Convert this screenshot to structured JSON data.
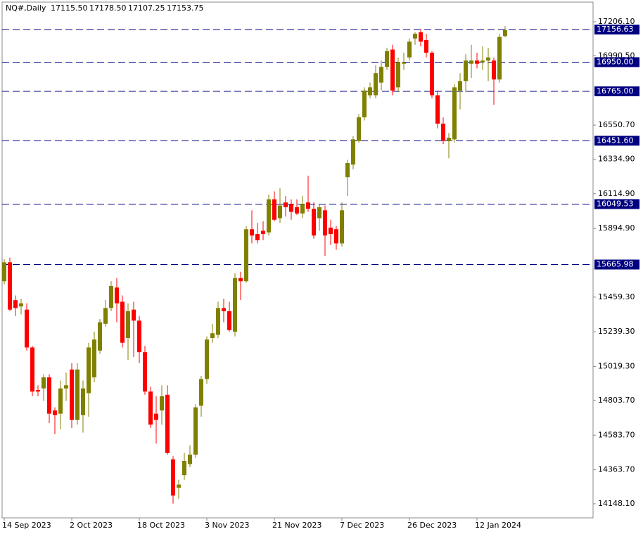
{
  "chart_data": {
    "type": "candlestick",
    "title": "NQ#,Daily",
    "last_bar_labels": [
      "17115.50",
      "17178.50",
      "17107.25",
      "17153.75"
    ],
    "up_color": "#808000",
    "down_color": "#ff0000",
    "level_color": "#000080",
    "categories": [
      "14 Sep 2023",
      null,
      null,
      null,
      null,
      null,
      null,
      null,
      null,
      null,
      null,
      null,
      "2 Oct 2023",
      null,
      null,
      null,
      null,
      null,
      null,
      null,
      null,
      null,
      null,
      null,
      "18 Oct 2023",
      null,
      null,
      null,
      null,
      null,
      null,
      null,
      null,
      null,
      null,
      null,
      "3 Nov 2023",
      null,
      null,
      null,
      null,
      null,
      null,
      null,
      null,
      null,
      null,
      null,
      "21 Nov 2023",
      null,
      null,
      null,
      null,
      null,
      null,
      null,
      null,
      null,
      null,
      null,
      "7 Dec 2023",
      null,
      null,
      null,
      null,
      null,
      null,
      null,
      null,
      null,
      null,
      null,
      "26 Dec 2023",
      null,
      null,
      null,
      null,
      null,
      null,
      null,
      null,
      null,
      null,
      null,
      "12 Jan 2024",
      null,
      null,
      null,
      null,
      null
    ],
    "open": [
      15560,
      15680,
      15440,
      15400,
      15380,
      15140,
      14870,
      14880,
      14950,
      14740,
      14720,
      14880,
      15000,
      14680,
      14710,
      14850,
      14950,
      15120,
      15290,
      15390,
      15520,
      15430,
      15200,
      15380,
      15310,
      15110,
      14860,
      14720,
      14740,
      14840,
      14430,
      14250,
      14330,
      14400,
      14460,
      14770,
      14940,
      15200,
      15220,
      15390,
      15370,
      15240,
      15580,
      15560,
      15890,
      15860,
      15880,
      15870,
      16080,
      15960,
      16060,
      16050,
      16030,
      15990,
      16060,
      16020,
      15960,
      16010,
      15900,
      15890,
      15800,
      16220,
      16300,
      16450,
      16600,
      16740,
      16740,
      16820,
      16920,
      17030,
      16790,
      16940,
      16980,
      17100,
      17140,
      17090,
      17010,
      16740,
      16560,
      16450,
      16460,
      16770,
      16830,
      16940,
      16960,
      16950,
      16960,
      16960,
      16840,
      17115.5
    ],
    "high": [
      15700,
      15710,
      15470,
      15450,
      15420,
      15150,
      14900,
      14970,
      14970,
      14760,
      14930,
      14980,
      15040,
      15040,
      14930,
      15170,
      15240,
      15320,
      15440,
      15560,
      15580,
      15470,
      15420,
      15430,
      15340,
      15150,
      14890,
      14830,
      14900,
      14900,
      14450,
      14300,
      14470,
      14520,
      14780,
      14960,
      15210,
      15290,
      15430,
      15450,
      15430,
      15610,
      15620,
      15910,
      16010,
      15930,
      15940,
      16110,
      16130,
      16150,
      16100,
      16080,
      16080,
      16100,
      16230,
      16060,
      16050,
      16040,
      15950,
      15910,
      16060,
      16330,
      16480,
      16620,
      16790,
      16820,
      16930,
      16960,
      17040,
      17060,
      16980,
      17010,
      17100,
      17140,
      17160,
      17130,
      17020,
      16770,
      16600,
      16500,
      16810,
      16880,
      17000,
      17060,
      17010,
      17050,
      17040,
      16980,
      17130,
      17178.5
    ],
    "low": [
      15540,
      15370,
      15340,
      15350,
      15120,
      14830,
      14830,
      14800,
      14660,
      14590,
      14620,
      14800,
      14630,
      14650,
      14600,
      14700,
      14920,
      15100,
      15270,
      15370,
      15300,
      15140,
      15060,
      15080,
      15040,
      14840,
      14630,
      14530,
      14650,
      14460,
      14150,
      14180,
      14300,
      14380,
      14440,
      14700,
      14910,
      15170,
      15200,
      15300,
      15240,
      15210,
      15440,
      15550,
      15800,
      15800,
      15820,
      15850,
      15940,
      15930,
      15970,
      15950,
      15980,
      15960,
      16000,
      15830,
      15880,
      15720,
      15790,
      15760,
      15780,
      16100,
      16270,
      16440,
      16580,
      16720,
      16720,
      16770,
      16900,
      16740,
      16760,
      16900,
      16960,
      17060,
      17050,
      16980,
      16720,
      16530,
      16430,
      16340,
      16440,
      16650,
      16760,
      16850,
      16910,
      16900,
      16830,
      16680,
      16820,
      17107.25
    ],
    "close": [
      15680,
      15380,
      15390,
      15420,
      15140,
      14860,
      14860,
      14950,
      14720,
      14710,
      14880,
      14900,
      14680,
      15000,
      14880,
      15140,
      15190,
      15300,
      15390,
      15530,
      15420,
      15170,
      15370,
      15310,
      15110,
      14860,
      14650,
      14680,
      14830,
      14470,
      14200,
      14270,
      14420,
      14460,
      14760,
      14940,
      15190,
      15230,
      15390,
      15370,
      15250,
      15580,
      15560,
      15890,
      15850,
      15820,
      15860,
      16080,
      15950,
      16040,
      16030,
      16000,
      15990,
      16050,
      16020,
      15850,
      16030,
      15850,
      15860,
      15800,
      16010,
      16310,
      16460,
      16600,
      16770,
      16790,
      16880,
      16920,
      17020,
      16770,
      16950,
      16950,
      17080,
      17130,
      17080,
      17010,
      16740,
      16560,
      16450,
      16470,
      16790,
      16830,
      16960,
      16960,
      16940,
      16960,
      16980,
      16840,
      17110,
      17153.75
    ],
    "ylim": [
      14058.9,
      17330.9
    ],
    "yticks": [
      {
        "value": 17206.1,
        "label": "17206.10"
      },
      {
        "value": 16990.5,
        "label": "16990.50"
      },
      {
        "value": 16550.7,
        "label": "16550.70"
      },
      {
        "value": 16334.9,
        "label": "16334.90"
      },
      {
        "value": 16114.9,
        "label": "16114.90"
      },
      {
        "value": 15894.9,
        "label": "15894.90"
      },
      {
        "value": 15459.3,
        "label": "15459.30"
      },
      {
        "value": 15239.3,
        "label": "15239.30"
      },
      {
        "value": 15019.3,
        "label": "15019.30"
      },
      {
        "value": 14803.7,
        "label": "14803.70"
      },
      {
        "value": 14583.7,
        "label": "14583.70"
      },
      {
        "value": 14363.7,
        "label": "14363.70"
      },
      {
        "value": 14148.1,
        "label": "14148.10"
      }
    ],
    "levels": [
      {
        "value": 17156.63,
        "label": "17156.63"
      },
      {
        "value": 16950,
        "label": "16950.00"
      },
      {
        "value": 16765,
        "label": "16765.00"
      },
      {
        "value": 16451.6,
        "label": "16451.60"
      },
      {
        "value": 16049.53,
        "label": "16049.53"
      },
      {
        "value": 15665.98,
        "label": "15665.98"
      }
    ]
  }
}
